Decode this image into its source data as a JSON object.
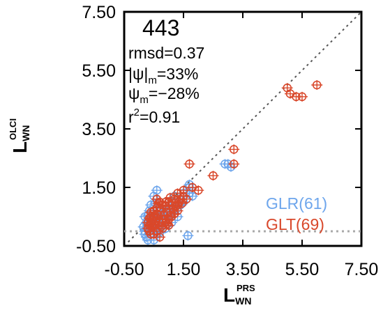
{
  "chart_data": {
    "type": "scatter",
    "title": "443",
    "xlabel": {
      "main": "L",
      "sub": "WN",
      "sup": "PRS"
    },
    "ylabel": {
      "main": "L",
      "sub": "WN",
      "sup": "OLCI"
    },
    "xlim": [
      -0.5,
      7.5
    ],
    "ylim": [
      -0.5,
      7.5
    ],
    "xticks": [
      "-0.50",
      "1.50",
      "3.50",
      "5.50",
      "7.50"
    ],
    "yticks": [
      "-0.50",
      "1.50",
      "3.50",
      "5.50",
      "7.50"
    ],
    "xtick_values": [
      -0.5,
      1.5,
      3.5,
      5.5,
      7.5
    ],
    "ytick_values": [
      -0.5,
      1.5,
      3.5,
      5.5,
      7.5
    ],
    "stats": {
      "rmsd": "rmsd=0.37",
      "mean_abs": {
        "pre": "|ψ|",
        "sub": "m",
        "post": "=33%"
      },
      "mean": {
        "pre": "ψ",
        "sub": "m",
        "post": "=−28%"
      },
      "r2": {
        "pre": "r",
        "sup": "2",
        "post": "=0.91"
      }
    },
    "one_to_one_line": true,
    "zero_line": true,
    "legend_position": "bottom-right",
    "series": [
      {
        "name": "GLR(61)",
        "color": "#6ea6ec",
        "points": [
          [
            2.9,
            2.3
          ],
          [
            3.0,
            2.3
          ],
          [
            3.1,
            2.2
          ],
          [
            1.7,
            1.6
          ],
          [
            1.7,
            1.5
          ],
          [
            1.7,
            1.3
          ],
          [
            1.8,
            1.2
          ],
          [
            1.6,
            1.1
          ],
          [
            1.5,
            1.0
          ],
          [
            1.2,
            1.0
          ],
          [
            0.9,
            1.0
          ],
          [
            0.8,
            0.9
          ],
          [
            0.6,
            0.8
          ],
          [
            0.5,
            0.6
          ],
          [
            0.45,
            0.5
          ],
          [
            0.4,
            0.4
          ],
          [
            0.3,
            0.4
          ],
          [
            0.25,
            0.3
          ],
          [
            0.3,
            0.2
          ],
          [
            0.25,
            0.1
          ],
          [
            0.2,
            0.0
          ],
          [
            0.2,
            -0.1
          ],
          [
            0.25,
            -0.2
          ],
          [
            0.3,
            -0.3
          ],
          [
            0.5,
            -0.3
          ],
          [
            0.6,
            -0.1
          ],
          [
            0.7,
            0.1
          ],
          [
            0.8,
            0.2
          ],
          [
            0.9,
            0.4
          ],
          [
            1.0,
            0.5
          ],
          [
            1.1,
            0.6
          ],
          [
            1.2,
            0.7
          ],
          [
            1.3,
            0.8
          ],
          [
            1.4,
            0.9
          ],
          [
            1.0,
            0.8
          ],
          [
            0.5,
            1.2
          ],
          [
            0.4,
            0.9
          ],
          [
            0.35,
            0.7
          ],
          [
            0.6,
            1.4
          ],
          [
            0.7,
            0.5
          ],
          [
            0.5,
            0.3
          ],
          [
            0.4,
            0.1
          ],
          [
            0.15,
            0.15
          ],
          [
            0.2,
            0.5
          ],
          [
            0.6,
            0.6
          ],
          [
            0.8,
            0.6
          ],
          [
            1.1,
            0.3
          ],
          [
            1.3,
            0.5
          ],
          [
            0.9,
            0.1
          ],
          [
            0.7,
            -0.05
          ],
          [
            1.65,
            -0.15
          ],
          [
            0.3,
            0.55
          ],
          [
            0.55,
            0.45
          ],
          [
            0.35,
            0.25
          ],
          [
            0.45,
            0.05
          ],
          [
            0.65,
            0.35
          ],
          [
            1.2,
            1.2
          ],
          [
            1.5,
            1.3
          ],
          [
            0.95,
            0.75
          ],
          [
            0.75,
            0.7
          ],
          [
            0.55,
            0.95
          ]
        ]
      },
      {
        "name": "GLT(69)",
        "color": "#d9482b",
        "points": [
          [
            6.0,
            5.0
          ],
          [
            5.0,
            4.9
          ],
          [
            5.1,
            4.7
          ],
          [
            5.3,
            4.6
          ],
          [
            5.5,
            4.6
          ],
          [
            3.2,
            2.8
          ],
          [
            3.2,
            2.3
          ],
          [
            1.7,
            2.3
          ],
          [
            2.5,
            1.9
          ],
          [
            1.8,
            1.5
          ],
          [
            2.0,
            1.4
          ],
          [
            1.3,
            1.3
          ],
          [
            1.5,
            1.2
          ],
          [
            1.4,
            1.1
          ],
          [
            1.2,
            1.1
          ],
          [
            1.0,
            1.0
          ],
          [
            0.9,
            1.0
          ],
          [
            0.8,
            0.9
          ],
          [
            0.7,
            0.8
          ],
          [
            0.6,
            0.8
          ],
          [
            1.1,
            0.9
          ],
          [
            1.3,
            0.9
          ],
          [
            0.5,
            0.7
          ],
          [
            0.6,
            0.6
          ],
          [
            0.5,
            0.5
          ],
          [
            0.4,
            0.5
          ],
          [
            0.45,
            0.4
          ],
          [
            0.4,
            0.3
          ],
          [
            0.3,
            0.3
          ],
          [
            0.35,
            0.2
          ],
          [
            0.3,
            0.1
          ],
          [
            0.35,
            0.0
          ],
          [
            0.4,
            -0.1
          ],
          [
            0.6,
            0.0
          ],
          [
            0.55,
            0.2
          ],
          [
            0.7,
            0.3
          ],
          [
            0.8,
            0.4
          ],
          [
            0.9,
            0.3
          ],
          [
            1.0,
            0.4
          ],
          [
            1.1,
            0.5
          ],
          [
            1.2,
            0.6
          ],
          [
            1.3,
            0.7
          ],
          [
            0.6,
            1.1
          ],
          [
            0.7,
            1.0
          ],
          [
            1.5,
            1.4
          ],
          [
            1.6,
            1.1
          ],
          [
            1.0,
            0.2
          ],
          [
            0.8,
            0.1
          ],
          [
            0.5,
            -0.1
          ],
          [
            0.7,
            -0.2
          ],
          [
            1.15,
            0.75
          ],
          [
            0.95,
            0.65
          ],
          [
            0.65,
            0.55
          ],
          [
            1.25,
            0.85
          ],
          [
            0.85,
            0.55
          ],
          [
            0.45,
            0.15
          ],
          [
            0.75,
            0.15
          ],
          [
            0.55,
            0.35
          ],
          [
            0.35,
            0.45
          ],
          [
            1.05,
            0.55
          ],
          [
            0.9,
            0.85
          ],
          [
            1.35,
            1.0
          ],
          [
            1.45,
            0.95
          ],
          [
            0.6,
            0.45
          ],
          [
            0.5,
            0.25
          ],
          [
            0.4,
            0.65
          ],
          [
            0.95,
            0.25
          ],
          [
            1.05,
            1.15
          ],
          [
            0.65,
            0.95
          ]
        ]
      }
    ]
  }
}
